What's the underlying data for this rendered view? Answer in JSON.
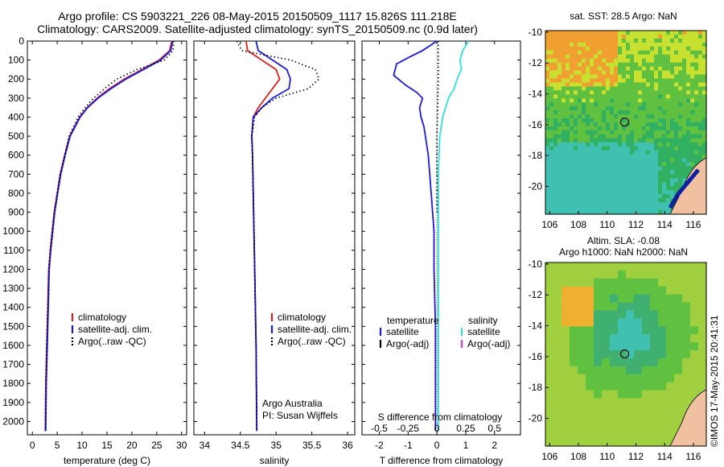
{
  "header": {
    "title_line1": "Argo profile: CS 5903221_226 08-May-2015 20150509_1117 15.826S 111.218E",
    "title_line2": "Climatology: CARS2009. Satellite-adjusted climatology: synTS_20150509.nc (0.9d later)"
  },
  "stamp": "©IMOS 17-May-2015 20:41:31",
  "colors": {
    "climatology": "#e02020",
    "satellite": "#1a1adf",
    "argo": "#000000",
    "sal_satellite": "#30e0e0",
    "sal_argo_adj": "#d040d0"
  },
  "chart_data": [
    {
      "type": "line",
      "name": "temperature-profile",
      "xlabel": "temperature (deg C)",
      "ylabel": "",
      "xlim": [
        -1,
        31
      ],
      "ylim": [
        2070,
        0
      ],
      "xticks": [
        0,
        5,
        10,
        15,
        20,
        25,
        30
      ],
      "yticks": [
        0,
        100,
        200,
        300,
        400,
        500,
        600,
        700,
        800,
        900,
        1000,
        1100,
        1200,
        1300,
        1400,
        1500,
        1600,
        1700,
        1800,
        1900,
        2000
      ],
      "legend": [
        "climatology",
        "satellite-adj. clim.",
        "Argo(..raw -QC)"
      ],
      "series": [
        {
          "name": "climatology",
          "style": "solid",
          "color": "#e02020",
          "x": [
            28.0,
            27.6,
            25.5,
            22.0,
            18.5,
            15.5,
            13.0,
            11.0,
            9.5,
            8.5,
            7.5,
            6.5,
            5.6,
            5.0,
            4.4,
            4.0,
            3.6,
            3.3,
            3.1,
            2.9,
            2.7,
            2.6
          ],
          "y": [
            0,
            50,
            100,
            150,
            200,
            250,
            300,
            350,
            400,
            450,
            500,
            600,
            700,
            800,
            900,
            1000,
            1100,
            1200,
            1400,
            1600,
            1800,
            2050
          ]
        },
        {
          "name": "satellite-adj. clim.",
          "style": "solid",
          "color": "#1a1adf",
          "x": [
            28.2,
            27.8,
            25.8,
            22.3,
            18.8,
            15.8,
            13.2,
            11.1,
            9.6,
            8.6,
            7.6,
            6.6,
            5.7,
            5.1,
            4.5,
            4.1,
            3.7,
            3.4,
            3.2,
            3.0,
            2.8,
            2.7
          ],
          "y": [
            0,
            50,
            100,
            150,
            200,
            250,
            300,
            350,
            400,
            450,
            500,
            600,
            700,
            800,
            900,
            1000,
            1100,
            1200,
            1400,
            1600,
            1800,
            2050
          ]
        },
        {
          "name": "Argo(..raw -QC)",
          "style": "dotted",
          "color": "#000000",
          "x": [
            28.4,
            28.3,
            26.5,
            21.0,
            17.0,
            14.5,
            12.3,
            10.6,
            9.2,
            8.3,
            7.4,
            6.5,
            5.6,
            5.0,
            4.4,
            4.0,
            3.6,
            3.3,
            3.1,
            2.9,
            2.7,
            2.6
          ],
          "y": [
            0,
            50,
            100,
            150,
            200,
            250,
            300,
            350,
            400,
            450,
            500,
            600,
            700,
            800,
            900,
            1000,
            1100,
            1200,
            1400,
            1600,
            1800,
            2050
          ]
        }
      ]
    },
    {
      "type": "line",
      "name": "salinity-profile",
      "xlabel": "salinity",
      "xlim": [
        33.85,
        36.1
      ],
      "ylim": [
        2070,
        0
      ],
      "xticks": [
        34,
        34.5,
        35,
        35.5,
        36
      ],
      "legend": [
        "climatology",
        "satellite-adj. clim.",
        "Argo(..raw -QC)"
      ],
      "annotation": [
        "Argo Australia",
        "PI: Susan Wijffels"
      ],
      "series": [
        {
          "name": "climatology",
          "style": "solid",
          "color": "#e02020",
          "x": [
            34.58,
            34.6,
            34.8,
            35.0,
            35.05,
            34.95,
            34.85,
            34.75,
            34.68,
            34.66,
            34.67,
            34.68,
            34.7,
            34.72,
            34.73
          ],
          "y": [
            0,
            50,
            100,
            150,
            200,
            250,
            300,
            350,
            400,
            500,
            600,
            800,
            1200,
            1600,
            2050
          ]
        },
        {
          "name": "satellite-adj. clim.",
          "style": "solid",
          "color": "#1a1adf",
          "x": [
            34.72,
            34.75,
            34.95,
            35.15,
            35.2,
            35.18,
            34.95,
            34.8,
            34.68,
            34.66,
            34.67,
            34.68,
            34.7,
            34.72,
            34.73
          ],
          "y": [
            0,
            50,
            100,
            150,
            200,
            250,
            300,
            350,
            400,
            500,
            600,
            800,
            1200,
            1600,
            2050
          ]
        },
        {
          "name": "Argo(..raw -QC)",
          "style": "dotted",
          "color": "#000000",
          "x": [
            34.45,
            34.52,
            35.2,
            35.55,
            35.6,
            35.45,
            35.0,
            34.8,
            34.7,
            34.66,
            34.67,
            34.68,
            34.7,
            34.72,
            34.73
          ],
          "y": [
            0,
            50,
            100,
            150,
            200,
            250,
            300,
            350,
            400,
            500,
            600,
            800,
            1200,
            1600,
            2050
          ]
        }
      ]
    },
    {
      "type": "line",
      "name": "difference-profile",
      "xlabel": "T difference from climatology",
      "xlabel_top": "S difference from climatology",
      "xlim": [
        -2.6,
        2.9
      ],
      "ylim": [
        2070,
        0
      ],
      "xticks": [
        -2,
        -1,
        0,
        1,
        2
      ],
      "xticks_top_labels": [
        "-0.5",
        "-0.25",
        "0",
        "0.25",
        "0.5"
      ],
      "xticks_top_pos": [
        -2,
        -1,
        0,
        1,
        2
      ],
      "legend_temperature": {
        "heading": "temperature",
        "items": [
          "satellite",
          "Argo(-adj)"
        ]
      },
      "legend_salinity": {
        "heading": "salinity",
        "items": [
          "satellite",
          "Argo(-adj)"
        ]
      },
      "series": [
        {
          "name": "temperature satellite",
          "style": "solid",
          "color": "#1a1adf",
          "x": [
            0,
            -0.5,
            -0.9,
            -1.4,
            -1.5,
            -1.1,
            -0.7,
            -0.5,
            -0.6,
            -0.55,
            -0.45,
            -0.3,
            -0.2,
            -0.1,
            -0.1,
            -0.05,
            -0.05,
            -0.05
          ],
          "y": [
            0,
            50,
            80,
            120,
            180,
            230,
            270,
            300,
            350,
            400,
            450,
            600,
            800,
            1000,
            1200,
            1500,
            1800,
            2050
          ]
        },
        {
          "name": "salinity satellite",
          "style": "solid",
          "color": "#30e0e0",
          "x": [
            1.1,
            0.9,
            0.8,
            0.85,
            0.7,
            0.6,
            0.4,
            0.3,
            0.2,
            0.1,
            0.05,
            0.05,
            0.05
          ],
          "y": [
            0,
            50,
            100,
            150,
            200,
            250,
            300,
            350,
            400,
            500,
            700,
            1200,
            2050
          ]
        },
        {
          "name": "Argo(-adj) difference",
          "style": "dotted",
          "color": "#000000",
          "x": [
            0.05,
            0.05,
            0,
            0
          ],
          "y": [
            0,
            200,
            500,
            900
          ]
        }
      ]
    },
    {
      "type": "heatmap",
      "name": "sst-map",
      "title": "sat. SST: 28.5 Argo: NaN",
      "xticks": [
        106,
        108,
        110,
        112,
        114,
        116
      ],
      "yticks": [
        -10,
        -12,
        -14,
        -16,
        -18,
        -20
      ],
      "xlim": [
        105.7,
        116.9
      ],
      "ylim": [
        -21.8,
        -9.9
      ],
      "marker": {
        "lon": 111.218,
        "lat": -15.826
      }
    },
    {
      "type": "heatmap",
      "name": "sla-map",
      "title_line1": "Altim. SLA: -0.08",
      "title_line2": "Argo h1000: NaN h2000: NaN",
      "xticks": [
        106,
        108,
        110,
        112,
        114,
        116
      ],
      "yticks": [
        -10,
        -12,
        -14,
        -16,
        -18,
        -20
      ],
      "xlim": [
        105.7,
        116.9
      ],
      "ylim": [
        -21.8,
        -9.9
      ],
      "marker": {
        "lon": 111.218,
        "lat": -15.826
      }
    }
  ]
}
